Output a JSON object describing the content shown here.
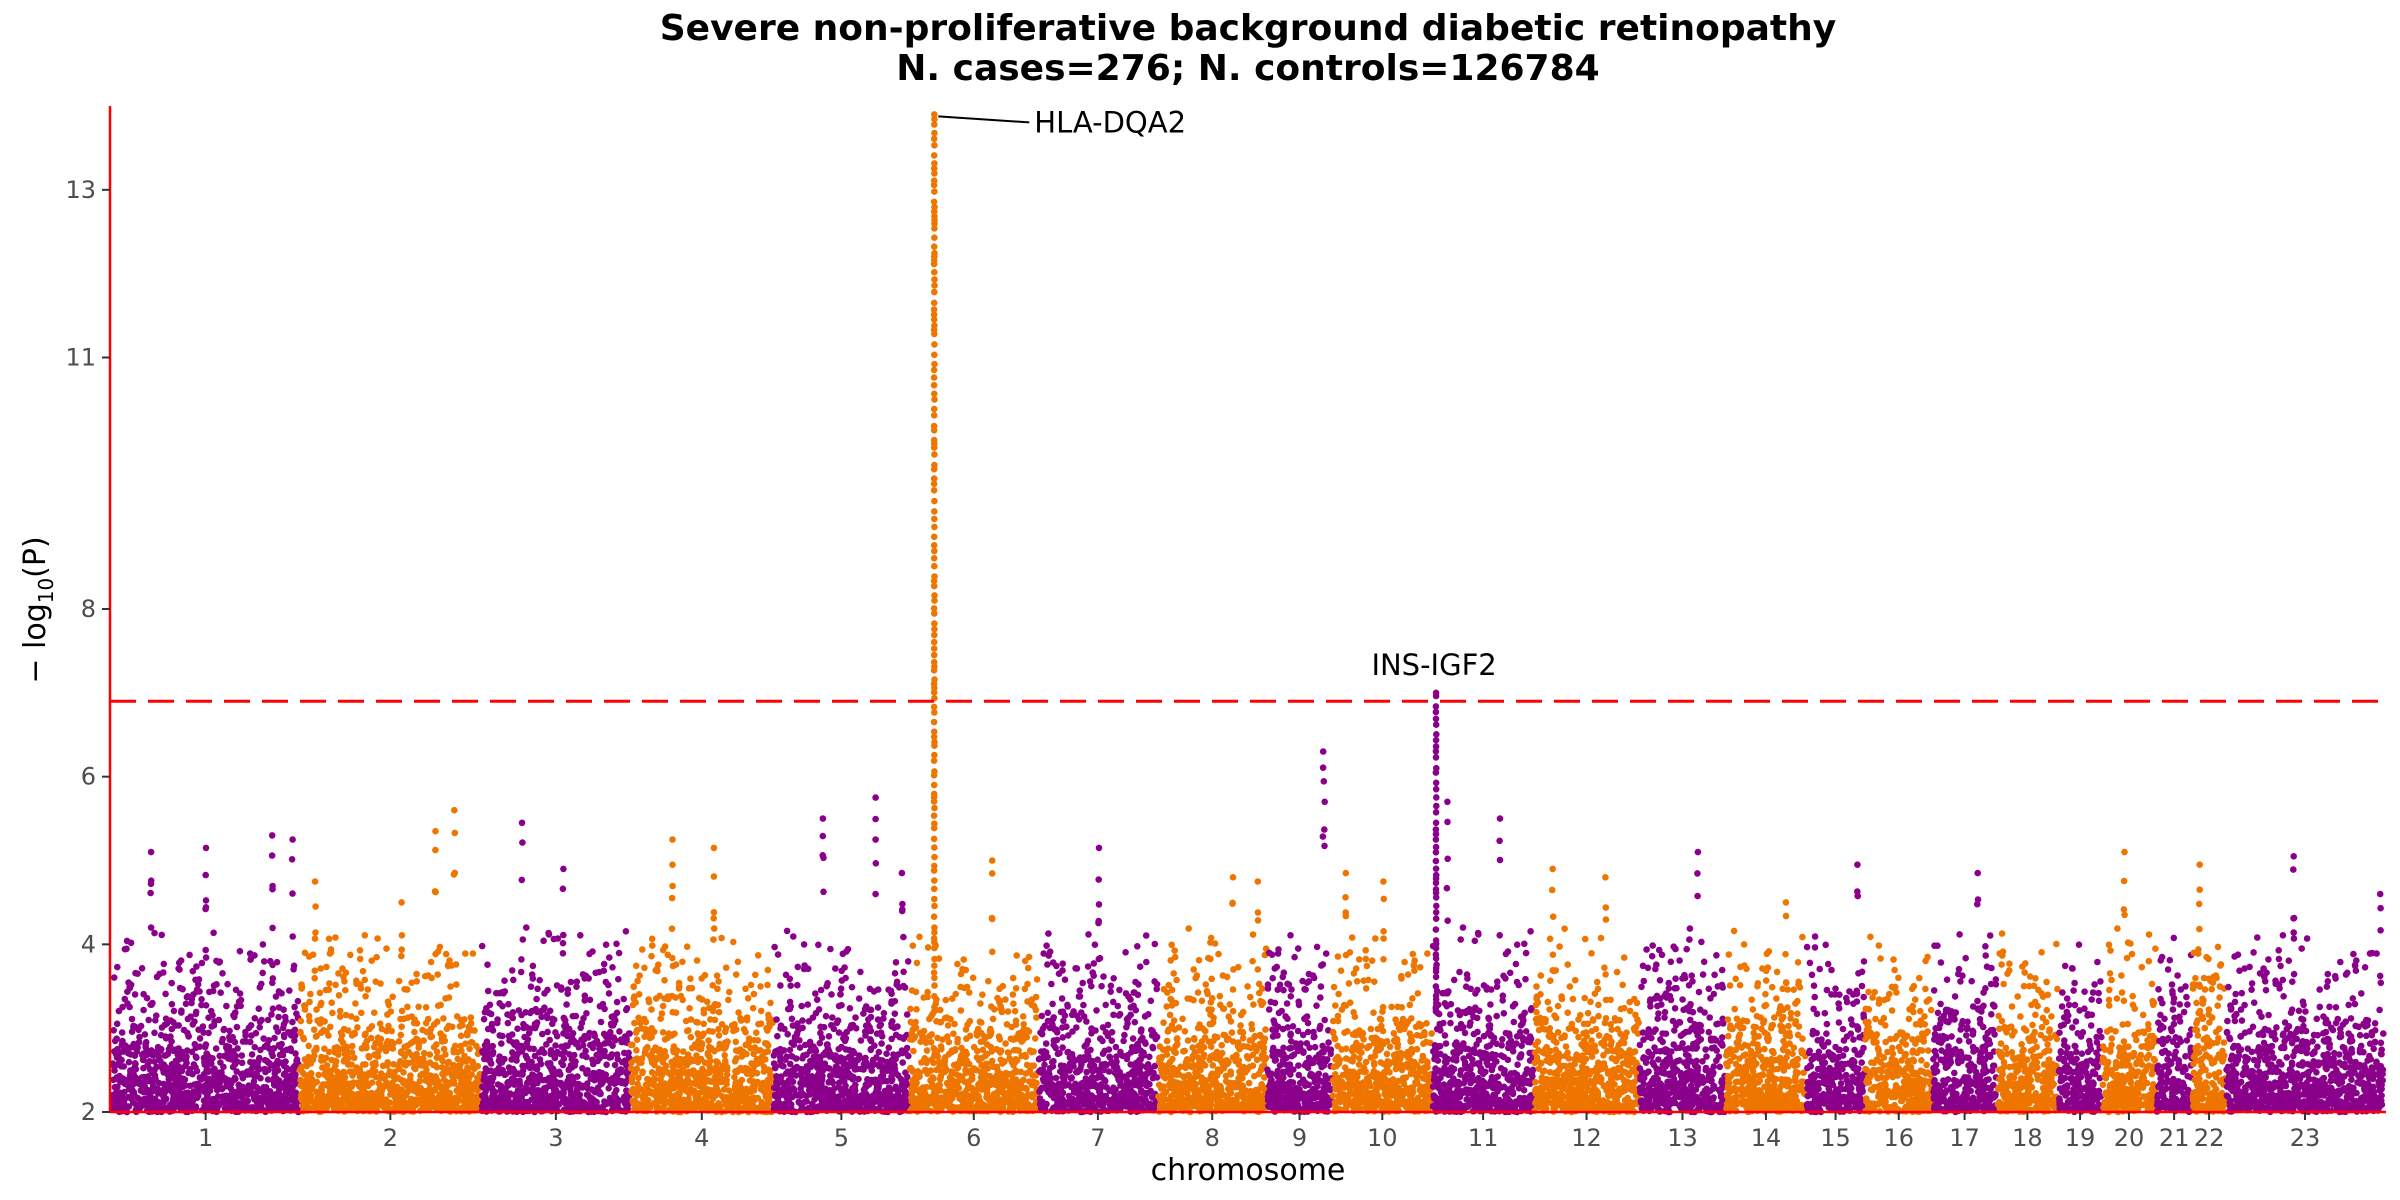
{
  "chart_data": {
    "type": "scatter",
    "subtype": "manhattan",
    "title": "Severe non-proliferative background diabetic retinopathy",
    "subtitle": "N. cases=276; N. controls=126784",
    "xlabel": "chromosome",
    "ylabel": "−log10(P)",
    "ylim": [
      2,
      14
    ],
    "y_ticks": [
      2,
      4,
      6,
      8,
      11,
      13
    ],
    "significance_threshold": 6.9,
    "colors": {
      "odd": "#8b008b",
      "even": "#ee7600",
      "threshold": "#ff0000",
      "axis": "#ff0000"
    },
    "grid": false,
    "legend": "none",
    "chromosomes": [
      {
        "label": "1",
        "start": 0,
        "end": 249
      },
      {
        "label": "2",
        "start": 249,
        "end": 491
      },
      {
        "label": "3",
        "start": 491,
        "end": 689
      },
      {
        "label": "4",
        "start": 689,
        "end": 879
      },
      {
        "label": "5",
        "start": 879,
        "end": 1060
      },
      {
        "label": "6",
        "start": 1060,
        "end": 1231
      },
      {
        "label": "7",
        "start": 1231,
        "end": 1390
      },
      {
        "label": "8",
        "start": 1390,
        "end": 1535
      },
      {
        "label": "9",
        "start": 1535,
        "end": 1622
      },
      {
        "label": "10",
        "start": 1622,
        "end": 1755
      },
      {
        "label": "11",
        "start": 1755,
        "end": 1890
      },
      {
        "label": "12",
        "start": 1890,
        "end": 2030
      },
      {
        "label": "13",
        "start": 2030,
        "end": 2145
      },
      {
        "label": "14",
        "start": 2145,
        "end": 2252
      },
      {
        "label": "15",
        "start": 2252,
        "end": 2330
      },
      {
        "label": "16",
        "start": 2330,
        "end": 2420
      },
      {
        "label": "17",
        "start": 2420,
        "end": 2505
      },
      {
        "label": "18",
        "start": 2505,
        "end": 2587
      },
      {
        "label": "19",
        "start": 2587,
        "end": 2645
      },
      {
        "label": "20",
        "start": 2645,
        "end": 2717
      },
      {
        "label": "21",
        "start": 2717,
        "end": 2765
      },
      {
        "label": "22",
        "start": 2765,
        "end": 2810
      },
      {
        "label": "23",
        "start": 2810,
        "end": 3020
      }
    ],
    "peaks": [
      {
        "chr": "6",
        "pos": 1093,
        "top": 13.9,
        "label": "HLA-DQA2"
      },
      {
        "chr": "11",
        "pos": 1760,
        "top": 7.0,
        "label": "INS-IGF2"
      }
    ],
    "highlight_points": [
      {
        "x": 52,
        "y": 5.1
      },
      {
        "x": 125,
        "y": 5.15
      },
      {
        "x": 213,
        "y": 5.3
      },
      {
        "x": 240,
        "y": 5.25
      },
      {
        "x": 270,
        "y": 4.75
      },
      {
        "x": 385,
        "y": 4.5
      },
      {
        "x": 430,
        "y": 5.35
      },
      {
        "x": 455,
        "y": 5.6
      },
      {
        "x": 545,
        "y": 5.45
      },
      {
        "x": 600,
        "y": 4.9
      },
      {
        "x": 745,
        "y": 5.25
      },
      {
        "x": 800,
        "y": 5.15
      },
      {
        "x": 945,
        "y": 5.5
      },
      {
        "x": 1015,
        "y": 5.75
      },
      {
        "x": 1050,
        "y": 4.85
      },
      {
        "x": 1170,
        "y": 5.0
      },
      {
        "x": 1312,
        "y": 5.15
      },
      {
        "x": 1490,
        "y": 4.8
      },
      {
        "x": 1523,
        "y": 4.75
      },
      {
        "x": 1610,
        "y": 6.3
      },
      {
        "x": 1612,
        "y": 5.7
      },
      {
        "x": 1640,
        "y": 4.85
      },
      {
        "x": 1690,
        "y": 4.75
      },
      {
        "x": 1775,
        "y": 5.7
      },
      {
        "x": 1845,
        "y": 5.5
      },
      {
        "x": 1915,
        "y": 4.9
      },
      {
        "x": 1985,
        "y": 4.8
      },
      {
        "x": 2108,
        "y": 5.1
      },
      {
        "x": 2225,
        "y": 4.5
      },
      {
        "x": 2320,
        "y": 4.95
      },
      {
        "x": 2480,
        "y": 4.85
      },
      {
        "x": 2675,
        "y": 5.1
      },
      {
        "x": 2775,
        "y": 4.95
      },
      {
        "x": 2900,
        "y": 5.05
      },
      {
        "x": 3015,
        "y": 4.6
      }
    ]
  }
}
